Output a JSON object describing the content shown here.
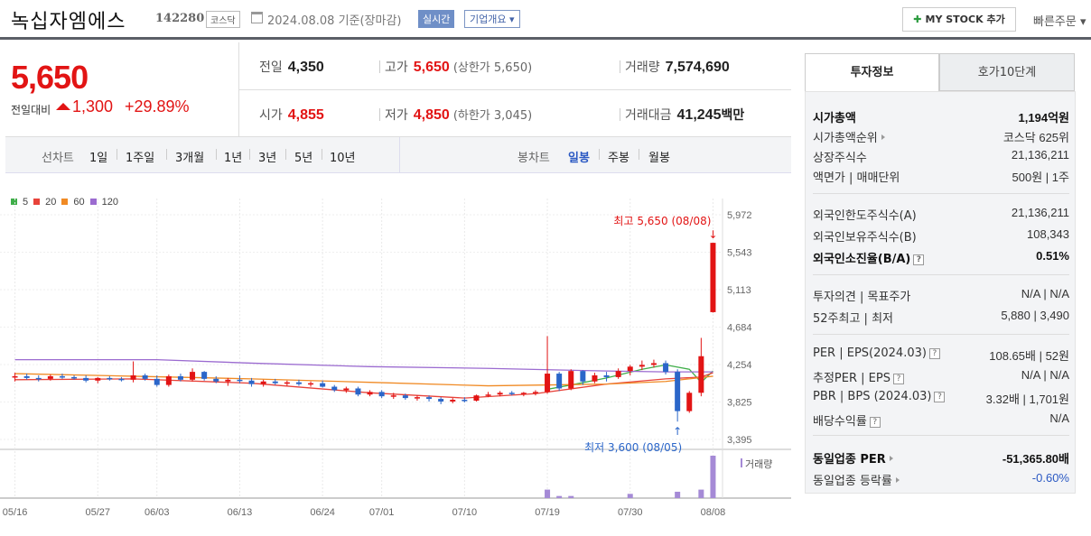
{
  "header": {
    "name": "녹십자엠에스",
    "code": "142280",
    "market": "코스닥",
    "date_text": "2024.08.08 기준(장마감)",
    "realtime_label": "실시간",
    "overview_label": "기업개요 ▾",
    "mystock_label": "MY STOCK 추가",
    "quick_order_label": "빠른주문 ▾"
  },
  "price": {
    "current": "5,650",
    "compare_label": "전일대비",
    "change": "1,300",
    "change_pct": "+29.89%",
    "prev_close_label": "전일",
    "prev_close": "4,350",
    "high_label": "고가",
    "high": "5,650",
    "upper_limit": "(상한가 5,650)",
    "volume_label": "거래량",
    "volume": "7,574,690",
    "open_label": "시가",
    "open": "4,855",
    "low_label": "저가",
    "low": "4,850",
    "lower_limit": "(하한가 3,045)",
    "amount_label": "거래대금",
    "amount": "41,245",
    "amount_unit": "백만"
  },
  "periods": {
    "line_label": "선차트",
    "line_items": [
      "1일",
      "1주일",
      "3개월",
      "1년",
      "3년",
      "5년",
      "10년"
    ],
    "candle_label": "봉차트",
    "candle_items": [
      "일봉",
      "주봉",
      "월봉"
    ],
    "active_candle": "일봉"
  },
  "legend": [
    {
      "label": "5",
      "color": "#3fae49"
    },
    {
      "label": "20",
      "color": "#e8433a"
    },
    {
      "label": "60",
      "color": "#f08a24"
    },
    {
      "label": "120",
      "color": "#9b6bd0"
    }
  ],
  "chart_data": {
    "type": "candlestick",
    "ylim": [
      3395,
      5972
    ],
    "y_ticks": [
      "5,972",
      "5,543",
      "5,113",
      "4,684",
      "4,254",
      "3,825",
      "3,395"
    ],
    "x_ticks": [
      "05/16",
      "05/27",
      "06/03",
      "06/13",
      "06/24",
      "07/01",
      "07/10",
      "07/19",
      "07/30",
      "08/08"
    ],
    "high_annotation": "최고 5,650 (08/08)",
    "low_annotation": "최저 3,600 (08/05)",
    "volume_label": "거래량",
    "candles": [
      {
        "d": "05/16",
        "o": 4110,
        "h": 4160,
        "l": 4060,
        "c": 4120
      },
      {
        "d": "05/17",
        "o": 4120,
        "h": 4150,
        "l": 4080,
        "c": 4100
      },
      {
        "d": "05/20",
        "o": 4100,
        "h": 4130,
        "l": 4060,
        "c": 4090
      },
      {
        "d": "05/21",
        "o": 4090,
        "h": 4140,
        "l": 4070,
        "c": 4120
      },
      {
        "d": "05/22",
        "o": 4120,
        "h": 4150,
        "l": 4090,
        "c": 4110
      },
      {
        "d": "05/23",
        "o": 4110,
        "h": 4130,
        "l": 4080,
        "c": 4100
      },
      {
        "d": "05/24",
        "o": 4100,
        "h": 4130,
        "l": 4050,
        "c": 4070
      },
      {
        "d": "05/27",
        "o": 4070,
        "h": 4110,
        "l": 4040,
        "c": 4100
      },
      {
        "d": "05/28",
        "o": 4100,
        "h": 4120,
        "l": 4070,
        "c": 4090
      },
      {
        "d": "05/29",
        "o": 4090,
        "h": 4110,
        "l": 4060,
        "c": 4080
      },
      {
        "d": "05/30",
        "o": 4080,
        "h": 4290,
        "l": 4050,
        "c": 4130
      },
      {
        "d": "05/31",
        "o": 4130,
        "h": 4150,
        "l": 4070,
        "c": 4090
      },
      {
        "d": "06/03",
        "o": 4090,
        "h": 4130,
        "l": 4000,
        "c": 4020
      },
      {
        "d": "06/04",
        "o": 4020,
        "h": 4140,
        "l": 4000,
        "c": 4120
      },
      {
        "d": "06/05",
        "o": 4120,
        "h": 4150,
        "l": 4060,
        "c": 4080
      },
      {
        "d": "06/07",
        "o": 4080,
        "h": 4210,
        "l": 4060,
        "c": 4170
      },
      {
        "d": "06/10",
        "o": 4170,
        "h": 4180,
        "l": 4070,
        "c": 4090
      },
      {
        "d": "06/11",
        "o": 4090,
        "h": 4120,
        "l": 4040,
        "c": 4060
      },
      {
        "d": "06/12",
        "o": 4060,
        "h": 4100,
        "l": 4010,
        "c": 4080
      },
      {
        "d": "06/13",
        "o": 4080,
        "h": 4130,
        "l": 4040,
        "c": 4070
      },
      {
        "d": "06/14",
        "o": 4070,
        "h": 4100,
        "l": 4000,
        "c": 4030
      },
      {
        "d": "06/17",
        "o": 4030,
        "h": 4080,
        "l": 4000,
        "c": 4060
      },
      {
        "d": "06/18",
        "o": 4060,
        "h": 4090,
        "l": 4020,
        "c": 4040
      },
      {
        "d": "06/19",
        "o": 4040,
        "h": 4070,
        "l": 4010,
        "c": 4050
      },
      {
        "d": "06/20",
        "o": 4050,
        "h": 4080,
        "l": 4010,
        "c": 4030
      },
      {
        "d": "06/21",
        "o": 4030,
        "h": 4060,
        "l": 4000,
        "c": 4040
      },
      {
        "d": "06/24",
        "o": 4040,
        "h": 4070,
        "l": 3990,
        "c": 4000
      },
      {
        "d": "06/25",
        "o": 4000,
        "h": 4020,
        "l": 3940,
        "c": 3960
      },
      {
        "d": "06/26",
        "o": 3960,
        "h": 4000,
        "l": 3930,
        "c": 3980
      },
      {
        "d": "06/27",
        "o": 3980,
        "h": 4000,
        "l": 3890,
        "c": 3910
      },
      {
        "d": "06/28",
        "o": 3910,
        "h": 3960,
        "l": 3890,
        "c": 3940
      },
      {
        "d": "07/01",
        "o": 3940,
        "h": 3960,
        "l": 3870,
        "c": 3890
      },
      {
        "d": "07/02",
        "o": 3890,
        "h": 3930,
        "l": 3860,
        "c": 3900
      },
      {
        "d": "07/03",
        "o": 3900,
        "h": 3920,
        "l": 3850,
        "c": 3870
      },
      {
        "d": "07/04",
        "o": 3870,
        "h": 3900,
        "l": 3840,
        "c": 3880
      },
      {
        "d": "07/05",
        "o": 3880,
        "h": 3900,
        "l": 3830,
        "c": 3860
      },
      {
        "d": "07/08",
        "o": 3860,
        "h": 3880,
        "l": 3800,
        "c": 3830
      },
      {
        "d": "07/09",
        "o": 3830,
        "h": 3870,
        "l": 3810,
        "c": 3850
      },
      {
        "d": "07/10",
        "o": 3850,
        "h": 3880,
        "l": 3820,
        "c": 3840
      },
      {
        "d": "07/11",
        "o": 3840,
        "h": 3910,
        "l": 3830,
        "c": 3900
      },
      {
        "d": "07/12",
        "o": 3900,
        "h": 3940,
        "l": 3880,
        "c": 3910
      },
      {
        "d": "07/15",
        "o": 3910,
        "h": 3950,
        "l": 3890,
        "c": 3930
      },
      {
        "d": "07/16",
        "o": 3930,
        "h": 3950,
        "l": 3900,
        "c": 3920
      },
      {
        "d": "07/17",
        "o": 3920,
        "h": 3940,
        "l": 3890,
        "c": 3930
      },
      {
        "d": "07/18",
        "o": 3930,
        "h": 3960,
        "l": 3900,
        "c": 3940
      },
      {
        "d": "07/19",
        "o": 3940,
        "h": 4580,
        "l": 3920,
        "c": 4150
      },
      {
        "d": "07/22",
        "o": 4150,
        "h": 4170,
        "l": 3950,
        "c": 3980
      },
      {
        "d": "07/23",
        "o": 3980,
        "h": 4200,
        "l": 3960,
        "c": 4180
      },
      {
        "d": "07/24",
        "o": 4180,
        "h": 4190,
        "l": 4020,
        "c": 4060
      },
      {
        "d": "07/25",
        "o": 4060,
        "h": 4160,
        "l": 4040,
        "c": 4130
      },
      {
        "d": "07/26",
        "o": 4130,
        "h": 4170,
        "l": 4060,
        "c": 4110
      },
      {
        "d": "07/29",
        "o": 4110,
        "h": 4210,
        "l": 4090,
        "c": 4180
      },
      {
        "d": "07/30",
        "o": 4180,
        "h": 4250,
        "l": 4130,
        "c": 4230
      },
      {
        "d": "07/31",
        "o": 4230,
        "h": 4300,
        "l": 4190,
        "c": 4250
      },
      {
        "d": "08/01",
        "o": 4250,
        "h": 4310,
        "l": 4220,
        "c": 4270
      },
      {
        "d": "08/02",
        "o": 4270,
        "h": 4300,
        "l": 4140,
        "c": 4170
      },
      {
        "d": "08/05",
        "o": 4170,
        "h": 4200,
        "l": 3600,
        "c": 3720
      },
      {
        "d": "08/06",
        "o": 3720,
        "h": 3950,
        "l": 3700,
        "c": 3930
      },
      {
        "d": "08/07",
        "o": 3930,
        "h": 4560,
        "l": 3890,
        "c": 4350
      },
      {
        "d": "08/08",
        "o": 4855,
        "h": 5650,
        "l": 4850,
        "c": 5650
      }
    ],
    "ma": {
      "5": [
        [
          45,
          3970
        ],
        [
          47,
          4020
        ],
        [
          50,
          4100
        ],
        [
          53,
          4200
        ],
        [
          55,
          4250
        ],
        [
          57,
          4200
        ],
        [
          58,
          4050
        ],
        [
          59,
          4180
        ]
      ],
      "20": [
        [
          0,
          4080
        ],
        [
          10,
          4090
        ],
        [
          20,
          4040
        ],
        [
          30,
          3930
        ],
        [
          38,
          3870
        ],
        [
          44,
          3920
        ],
        [
          50,
          4030
        ],
        [
          55,
          4090
        ],
        [
          58,
          4110
        ],
        [
          59,
          4160
        ]
      ],
      "60": [
        [
          0,
          4150
        ],
        [
          10,
          4120
        ],
        [
          20,
          4090
        ],
        [
          30,
          4050
        ],
        [
          40,
          4010
        ],
        [
          50,
          4030
        ],
        [
          55,
          4060
        ],
        [
          59,
          4120
        ]
      ],
      "120": [
        [
          0,
          4310
        ],
        [
          12,
          4310
        ],
        [
          20,
          4270
        ],
        [
          30,
          4230
        ],
        [
          40,
          4210
        ],
        [
          50,
          4180
        ],
        [
          55,
          4170
        ],
        [
          59,
          4170
        ]
      ]
    },
    "volume": [
      {
        "d": "07/19",
        "v": 0.2
      },
      {
        "d": "07/22",
        "v": 0.05
      },
      {
        "d": "07/23",
        "v": 0.05
      },
      {
        "d": "07/30",
        "v": 0.1
      },
      {
        "d": "08/05",
        "v": 0.15
      },
      {
        "d": "08/07",
        "v": 0.2
      },
      {
        "d": "08/08",
        "v": 1.0
      }
    ]
  },
  "panel": {
    "tab_active": "투자정보",
    "tab_other": "호가10단계",
    "rows": [
      {
        "k": "시가총액",
        "v": "1,194억원",
        "bold": true
      },
      {
        "k": "시가총액순위",
        "v": "코스닥 625위",
        "arrow": true
      },
      {
        "k": "상장주식수",
        "v": "21,136,211"
      },
      {
        "k": "액면가 | 매매단위",
        "v": "500원 | 1주"
      },
      {
        "k": "외국인한도주식수(A)",
        "v": "21,136,211"
      },
      {
        "k": "외국인보유주식수(B)",
        "v": "108,343"
      },
      {
        "k": "외국인소진율(B/A)",
        "v": "0.51%",
        "bold": true,
        "q": true
      },
      {
        "k": "투자의견 | 목표주가",
        "v": "N/A | N/A"
      },
      {
        "k": "52주최고 | 최저",
        "v": "5,880 | 3,490"
      },
      {
        "k": "PER | EPS(2024.03)",
        "v": "108.65배 | 52원",
        "q": true
      },
      {
        "k": "추정PER | EPS",
        "v": "N/A | N/A",
        "q": true
      },
      {
        "k": "PBR | BPS (2024.03)",
        "v": "3.32배 | 1,701원",
        "q": true
      },
      {
        "k": "배당수익률",
        "v": "N/A",
        "q": true
      },
      {
        "k": "동일업종 PER",
        "v": "-51,365.80배",
        "bold": true,
        "arrow": true
      },
      {
        "k": "동일업종 등락률",
        "v": "-0.60%",
        "arrow": true,
        "neg": true
      }
    ]
  }
}
